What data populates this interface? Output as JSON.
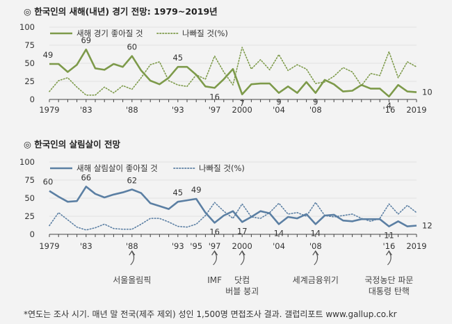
{
  "chart_data": [
    {
      "type": "line",
      "title": "한국인의 새해(내년) 경기 전망: 1979~2019년",
      "title_bullet": "◎",
      "x": [
        1979,
        1980,
        1981,
        1982,
        1983,
        1984,
        1985,
        1986,
        1987,
        1988,
        1989,
        1990,
        1991,
        1992,
        1993,
        1994,
        1995,
        1996,
        1997,
        1998,
        1999,
        2000,
        2001,
        2002,
        2003,
        2004,
        2005,
        2006,
        2007,
        2008,
        2009,
        2010,
        2011,
        2012,
        2013,
        2014,
        2015,
        2016,
        2017,
        2018,
        2019
      ],
      "xtick_labels": [
        "1979",
        "'83",
        "'88",
        "'93",
        "'97",
        "2000",
        "'04",
        "'08",
        "'16",
        "2019"
      ],
      "xtick_values": [
        1979,
        1983,
        1988,
        1993,
        1997,
        2000,
        2004,
        2008,
        2016,
        2019
      ],
      "ylim": [
        0,
        100
      ],
      "yticks": [
        0,
        25,
        50,
        75,
        100
      ],
      "legend_placement": "top-left",
      "series": [
        {
          "name": "새해 경기 좋아질 것",
          "style": "solid",
          "color": "#7d9a4a",
          "values": [
            49,
            49,
            38,
            48,
            69,
            43,
            41,
            49,
            45,
            60,
            40,
            26,
            21,
            30,
            45,
            45,
            34,
            18,
            16,
            28,
            42,
            7,
            21,
            22,
            22,
            9,
            18,
            9,
            24,
            9,
            27,
            21,
            11,
            12,
            20,
            15,
            15,
            4,
            20,
            11,
            10
          ]
        },
        {
          "name": "나빠질 것(%)",
          "style": "dotted",
          "color": "#7d9a4a",
          "values": [
            11,
            26,
            30,
            17,
            6,
            6,
            17,
            9,
            19,
            14,
            30,
            48,
            52,
            26,
            20,
            18,
            34,
            28,
            60,
            38,
            20,
            72,
            42,
            55,
            41,
            62,
            40,
            48,
            42,
            22,
            24,
            32,
            44,
            38,
            19,
            36,
            33,
            66,
            30,
            52,
            45
          ]
        }
      ],
      "point_labels": [
        {
          "x": 1979,
          "text": "49"
        },
        {
          "x": 1983,
          "text": "69"
        },
        {
          "x": 1988,
          "text": "60"
        },
        {
          "x": 1993,
          "text": "45"
        },
        {
          "x": 1997,
          "text": "16"
        },
        {
          "x": 2000,
          "text": "7"
        },
        {
          "x": 2004,
          "text": "9"
        },
        {
          "x": 2008,
          "text": "9"
        },
        {
          "x": 2016,
          "text": "4"
        },
        {
          "x": 2019,
          "text": "10"
        }
      ]
    },
    {
      "type": "line",
      "title": "한국인의 살림살이 전망",
      "title_bullet": "◎",
      "x": [
        1979,
        1980,
        1981,
        1982,
        1983,
        1984,
        1985,
        1986,
        1987,
        1988,
        1989,
        1990,
        1991,
        1992,
        1993,
        1994,
        1995,
        1996,
        1997,
        1998,
        1999,
        2000,
        2001,
        2002,
        2003,
        2004,
        2005,
        2006,
        2007,
        2008,
        2009,
        2010,
        2011,
        2012,
        2013,
        2014,
        2015,
        2016,
        2017,
        2018,
        2019
      ],
      "xtick_labels": [
        "1979",
        "'83",
        "'88",
        "'93",
        "'95",
        "'97",
        "2000",
        "'04",
        "'08",
        "'16",
        "2019"
      ],
      "xtick_values": [
        1979,
        1983,
        1988,
        1993,
        1995,
        1997,
        2000,
        2004,
        2008,
        2016,
        2019
      ],
      "ylim": [
        0,
        100
      ],
      "yticks": [
        0,
        25,
        50,
        75,
        100
      ],
      "legend_placement": "top-left",
      "series": [
        {
          "name": "새해 살림살이 좋아질 것",
          "style": "solid",
          "color": "#5b7fa3",
          "values": [
            60,
            52,
            45,
            46,
            66,
            56,
            51,
            55,
            58,
            62,
            57,
            43,
            39,
            35,
            45,
            47,
            49,
            30,
            16,
            26,
            32,
            17,
            24,
            32,
            29,
            14,
            24,
            22,
            28,
            14,
            26,
            27,
            19,
            18,
            21,
            21,
            21,
            11,
            18,
            11,
            12
          ]
        },
        {
          "name": "나빠질 것(%)",
          "style": "dotted",
          "color": "#5b7fa3",
          "values": [
            12,
            30,
            20,
            10,
            6,
            9,
            14,
            8,
            7,
            7,
            14,
            22,
            22,
            17,
            11,
            10,
            14,
            26,
            44,
            32,
            22,
            42,
            24,
            22,
            30,
            43,
            28,
            30,
            25,
            44,
            26,
            24,
            26,
            28,
            22,
            18,
            22,
            42,
            28,
            40,
            30
          ]
        }
      ],
      "point_labels": [
        {
          "x": 1979,
          "text": "60"
        },
        {
          "x": 1983,
          "text": "66"
        },
        {
          "x": 1988,
          "text": "62"
        },
        {
          "x": 1993,
          "text": "45"
        },
        {
          "x": 1995,
          "text": "49"
        },
        {
          "x": 1997,
          "text": "16"
        },
        {
          "x": 2000,
          "text": "17"
        },
        {
          "x": 2004,
          "text": "14"
        },
        {
          "x": 2008,
          "text": "14"
        },
        {
          "x": 2016,
          "text": "11"
        },
        {
          "x": 2019,
          "text": "12"
        }
      ],
      "annotations": [
        {
          "x": 1988,
          "lines": [
            "서울올림픽"
          ]
        },
        {
          "x": 1997,
          "lines": [
            "IMF"
          ]
        },
        {
          "x": 2000,
          "lines": [
            "닷컴",
            "버블 붕괴"
          ]
        },
        {
          "x": 2008,
          "lines": [
            "세계금융위기"
          ]
        },
        {
          "x": 2016,
          "lines": [
            "국정농단 파문",
            "대통령 탄핵"
          ]
        }
      ]
    }
  ],
  "footnote": "*연도는 조사 시기. 매년 말 전국(제주 제외) 성인 1,500명 면접조사 결과. 갤럽리포트 www.gallup.co.kr"
}
